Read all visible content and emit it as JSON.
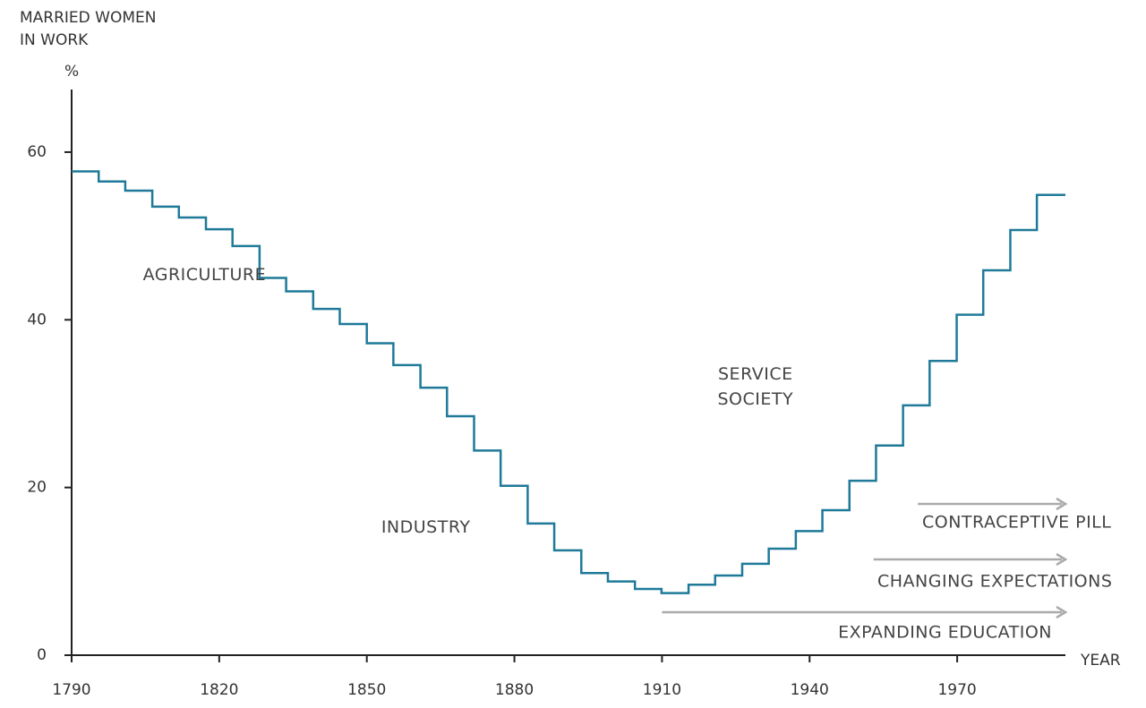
{
  "chart_data": {
    "type": "step",
    "ylabel": "MARRIED WOMEN IN WORK",
    "yunit": "%",
    "xlabel": "YEAR",
    "x": [
      1790,
      1795.5,
      1800.9,
      1806.4,
      1811.8,
      1817.3,
      1822.7,
      1828.2,
      1833.6,
      1839.1,
      1844.5,
      1850,
      1855.4,
      1860.9,
      1866.3,
      1871.8,
      1877.2,
      1882.7,
      1888.1,
      1893.6,
      1899,
      1904.5,
      1909.9,
      1915.4,
      1920.8,
      1926.3,
      1931.7,
      1937.2,
      1942.6,
      1948.1,
      1953.5,
      1959,
      1964.4,
      1969.9,
      1975.3,
      1980.8,
      1986.2
    ],
    "values": [
      57.7,
      56.5,
      55.4,
      53.5,
      52.2,
      50.8,
      48.8,
      45.0,
      43.4,
      41.3,
      39.5,
      37.2,
      34.6,
      31.9,
      28.5,
      24.4,
      20.2,
      15.7,
      12.5,
      9.8,
      8.8,
      7.9,
      7.4,
      8.4,
      9.5,
      10.9,
      12.7,
      14.8,
      17.3,
      20.8,
      25.0,
      29.8,
      35.1,
      40.6,
      45.9,
      50.7,
      54.9
    ],
    "color": "#1f7a99",
    "xlim": [
      1790,
      1992
    ],
    "xticks": [
      1790,
      1820,
      1850,
      1880,
      1910,
      1940,
      1970
    ],
    "ylim": [
      0,
      68
    ],
    "yticks": [
      0,
      20,
      40,
      60
    ],
    "annotations": [
      {
        "text": "AGRICULTURE",
        "x": 1817,
        "y": 45.3
      },
      {
        "text": "INDUSTRY",
        "x": 1862,
        "y": 15.2
      },
      {
        "text": "SERVICE SOCIETY",
        "x": 1929,
        "y": 33.5
      }
    ],
    "arrows": [
      {
        "text": "CONTRACEPTIVE PILL",
        "from": 1962,
        "to": 1992
      },
      {
        "text": "CHANGING EXPECTATIONS",
        "from": 1953,
        "to": 1992
      },
      {
        "text": "EXPANDING EDUCATION",
        "from": 1910,
        "to": 1992
      }
    ]
  }
}
